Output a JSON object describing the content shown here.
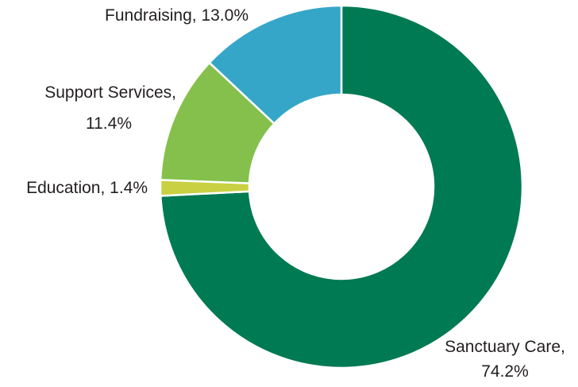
{
  "chart_data": {
    "type": "pie",
    "donut": true,
    "title": "",
    "legend": "none",
    "slices": [
      {
        "label": "Sanctuary Care",
        "value": 74.2,
        "display": "74.2%",
        "color": "#007a52"
      },
      {
        "label": "Education",
        "value": 1.4,
        "display": "1.4%",
        "color": "#c9d143"
      },
      {
        "label": "Support Services",
        "value": 11.4,
        "display": "11.4%",
        "color": "#84c04b"
      },
      {
        "label": "Fundraising",
        "value": 13.0,
        "display": "13.0%",
        "color": "#35a6c8"
      }
    ]
  }
}
